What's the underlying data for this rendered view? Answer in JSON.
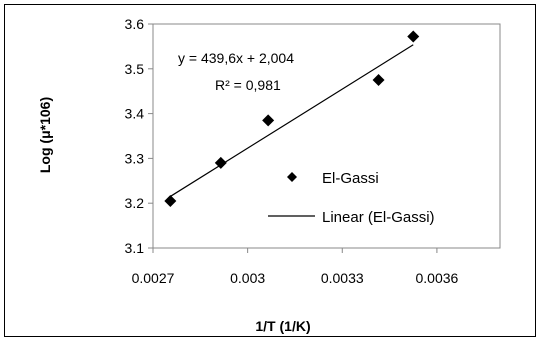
{
  "chart_data": {
    "type": "scatter",
    "title": "",
    "xlabel": "1/T (1/K)",
    "ylabel": "Log (μ*106)",
    "xlim": [
      0.0027,
      0.0038
    ],
    "ylim": [
      3.1,
      3.6
    ],
    "x_ticks": [
      0.0027,
      0.003,
      0.0033,
      0.0036
    ],
    "x_tick_labels": [
      "0.0027",
      "0.003",
      "0.0033",
      "0.0036"
    ],
    "y_ticks": [
      3.1,
      3.2,
      3.3,
      3.4,
      3.5,
      3.6
    ],
    "y_tick_labels": [
      "3.1",
      "3.2",
      "3.3",
      "3.4",
      "3.5",
      "3.6"
    ],
    "grid": false,
    "legend_position": "right",
    "series": [
      {
        "name": "El-Gassi",
        "marker": "diamond",
        "color": "#000000",
        "points": [
          {
            "x": 0.002755,
            "y": 3.205
          },
          {
            "x": 0.002915,
            "y": 3.29
          },
          {
            "x": 0.003065,
            "y": 3.385
          },
          {
            "x": 0.003415,
            "y": 3.475
          },
          {
            "x": 0.003525,
            "y": 3.572
          }
        ]
      }
    ],
    "trendline": {
      "name": "Linear (El-Gassi)",
      "slope": 439.6,
      "intercept": 2.004,
      "x_range": [
        0.002755,
        0.003525
      ],
      "color": "#000000"
    },
    "annotations": {
      "equation": "y = 439,6x + 2,004",
      "r_squared": "R² = 0,981"
    }
  }
}
